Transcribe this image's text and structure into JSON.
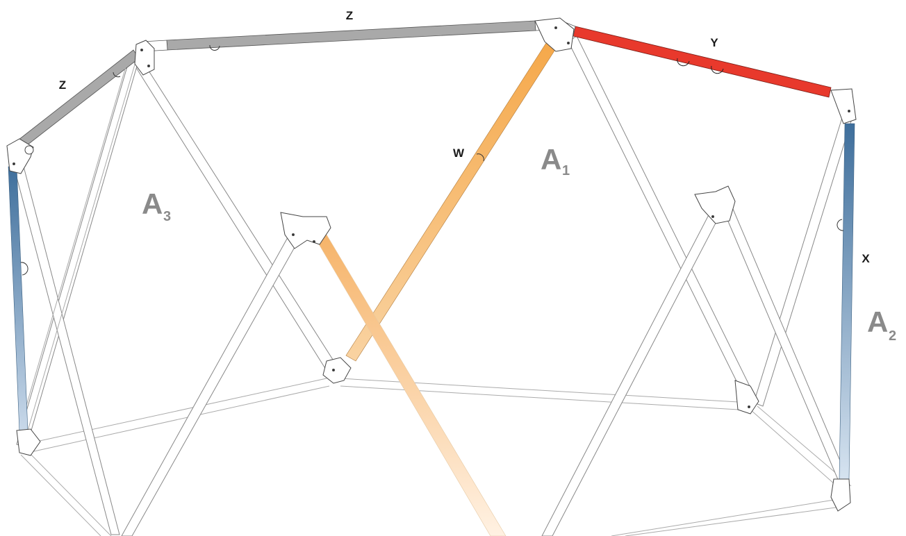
{
  "labels": {
    "z_top": "Z",
    "z_left": "Z",
    "y": "Y",
    "w": "W",
    "x": "X"
  },
  "panels": {
    "a1": {
      "letter": "A",
      "sub": "1"
    },
    "a2": {
      "letter": "A",
      "sub": "2"
    },
    "a3": {
      "letter": "A",
      "sub": "3"
    }
  },
  "colors": {
    "z_tube": "#a9a9a9",
    "y_tube": "#e8392c",
    "w_tube": "#f5a84a",
    "x_tube": "#3f6f9c",
    "frame_stroke": "#555555",
    "panel_label": "#8a8a8a"
  }
}
